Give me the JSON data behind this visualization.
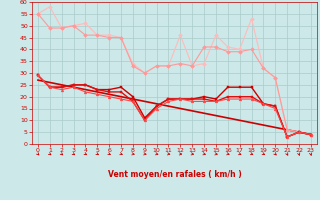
{
  "bg_color": "#cce8e8",
  "grid_color": "#aacccc",
  "xlabel": "Vent moyen/en rafales ( km/h )",
  "xlabel_color": "#cc0000",
  "tick_color": "#cc0000",
  "xlim": [
    -0.5,
    23.5
  ],
  "ylim": [
    0,
    60
  ],
  "yticks": [
    0,
    5,
    10,
    15,
    20,
    25,
    30,
    35,
    40,
    45,
    50,
    55,
    60
  ],
  "xticks": [
    0,
    1,
    2,
    3,
    4,
    5,
    6,
    7,
    8,
    9,
    10,
    11,
    12,
    13,
    14,
    15,
    16,
    17,
    18,
    19,
    20,
    21,
    22,
    23
  ],
  "series": [
    {
      "x": [
        0,
        1,
        2,
        3,
        4,
        5,
        6,
        7,
        8,
        9,
        10,
        11,
        12,
        13,
        14,
        15,
        16,
        17,
        18,
        19,
        20,
        21,
        22,
        23
      ],
      "y": [
        55,
        58,
        49,
        50,
        51,
        46,
        46,
        45,
        34,
        30,
        33,
        33,
        46,
        33,
        34,
        46,
        41,
        40,
        53,
        32,
        28,
        6,
        5,
        4
      ],
      "color": "#ffbbbb",
      "marker": "D",
      "lw": 0.8,
      "ms": 2.0
    },
    {
      "x": [
        0,
        1,
        2,
        3,
        4,
        5,
        6,
        7,
        8,
        9,
        10,
        11,
        12,
        13,
        14,
        15,
        16,
        17,
        18,
        19,
        20,
        21,
        22,
        23
      ],
      "y": [
        55,
        49,
        49,
        50,
        46,
        46,
        45,
        45,
        33,
        30,
        33,
        33,
        34,
        33,
        41,
        41,
        39,
        39,
        40,
        32,
        28,
        6,
        5,
        4
      ],
      "color": "#ff9999",
      "marker": "D",
      "lw": 0.8,
      "ms": 2.0
    },
    {
      "x": [
        0,
        1,
        2,
        3,
        4,
        5,
        6,
        7,
        8,
        9,
        10,
        11,
        12,
        13,
        14,
        15,
        16,
        17,
        18,
        19,
        20,
        21,
        22,
        23
      ],
      "y": [
        29,
        24,
        24,
        25,
        25,
        23,
        23,
        24,
        20,
        11,
        16,
        19,
        19,
        19,
        20,
        19,
        24,
        24,
        24,
        17,
        16,
        3,
        5,
        4
      ],
      "color": "#cc0000",
      "marker": "s",
      "lw": 1.0,
      "ms": 2.0
    },
    {
      "x": [
        0,
        1,
        2,
        3,
        4,
        5,
        6,
        7,
        8,
        9,
        10,
        11,
        12,
        13,
        14,
        15,
        16,
        17,
        18,
        19,
        20,
        21,
        22,
        23
      ],
      "y": [
        29,
        24,
        24,
        25,
        25,
        23,
        22,
        22,
        18,
        10,
        16,
        19,
        19,
        19,
        19,
        18,
        20,
        20,
        20,
        17,
        16,
        3,
        5,
        4
      ],
      "color": "#dd1111",
      "marker": "s",
      "lw": 1.0,
      "ms": 2.0
    },
    {
      "x": [
        0,
        1,
        2,
        3,
        4,
        5,
        6,
        7,
        8,
        9,
        10,
        11,
        12,
        13,
        14,
        15,
        16,
        17,
        18,
        19,
        20,
        21,
        22,
        23
      ],
      "y": [
        29,
        24,
        23,
        24,
        22,
        21,
        20,
        19,
        18,
        10,
        15,
        18,
        19,
        18,
        18,
        18,
        19,
        19,
        19,
        17,
        15,
        3,
        5,
        4
      ],
      "color": "#ff4444",
      "marker": "^",
      "lw": 0.8,
      "ms": 2.0
    },
    {
      "x": [
        0,
        23
      ],
      "y": [
        27,
        4
      ],
      "color": "#cc0000",
      "marker": null,
      "lw": 1.2,
      "ms": 0
    }
  ],
  "wind_angles": [
    45,
    55,
    50,
    55,
    60,
    60,
    65,
    70,
    80,
    80,
    75,
    80,
    85,
    80,
    75,
    80,
    75,
    70,
    70,
    65,
    45,
    30,
    20,
    15
  ]
}
